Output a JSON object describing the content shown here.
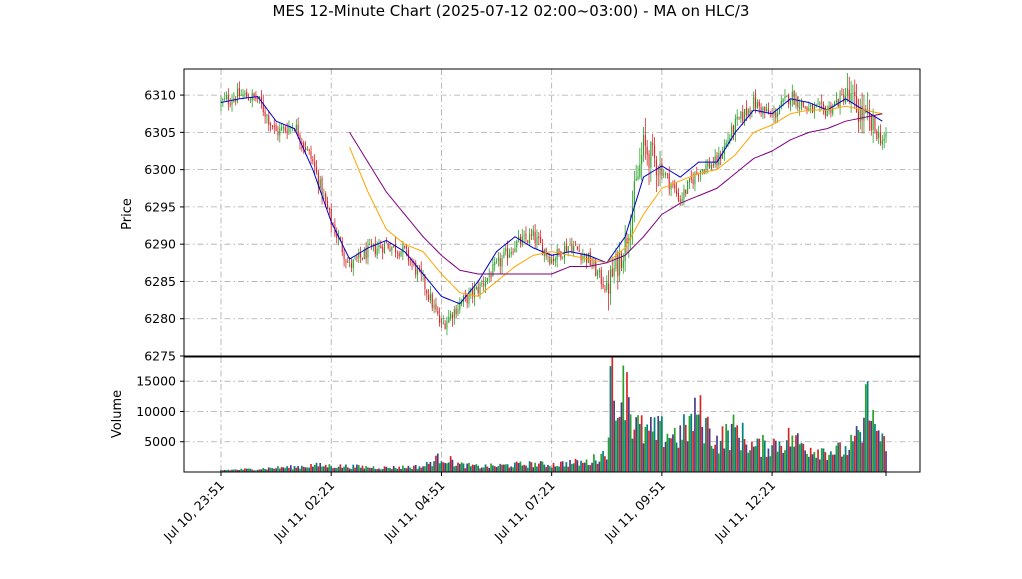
{
  "chart_data": {
    "type": "candlestick",
    "title": "MES 12-Minute Chart (2025-07-12 02:00~03:00) - MA on HLC/3",
    "price_panel": {
      "ylabel": "Price",
      "ylim": [
        6275,
        6313.5
      ],
      "yticks": [
        6275,
        6280,
        6285,
        6290,
        6295,
        6300,
        6305,
        6310
      ],
      "grid": true,
      "up_color": "#2ca02c",
      "down_color": "#d62728",
      "approx_close_path": [
        [
          0,
          6309
        ],
        [
          10,
          6310
        ],
        [
          20,
          6309.5
        ],
        [
          30,
          6305
        ],
        [
          40,
          6306
        ],
        [
          50,
          6301
        ],
        [
          60,
          6293
        ],
        [
          70,
          6287
        ],
        [
          80,
          6289
        ],
        [
          90,
          6290
        ],
        [
          100,
          6289
        ],
        [
          110,
          6285
        ],
        [
          120,
          6279
        ],
        [
          130,
          6282
        ],
        [
          140,
          6284
        ],
        [
          150,
          6287
        ],
        [
          160,
          6290
        ],
        [
          170,
          6291
        ],
        [
          180,
          6288
        ],
        [
          190,
          6290
        ],
        [
          200,
          6288
        ],
        [
          210,
          6284
        ],
        [
          220,
          6290
        ],
        [
          230,
          6303
        ],
        [
          240,
          6300
        ],
        [
          250,
          6296
        ],
        [
          260,
          6300
        ],
        [
          270,
          6301
        ],
        [
          280,
          6306
        ],
        [
          290,
          6309
        ],
        [
          300,
          6307
        ],
        [
          310,
          6310
        ],
        [
          320,
          6308
        ],
        [
          330,
          6308
        ],
        [
          340,
          6310
        ],
        [
          350,
          6307
        ],
        [
          360,
          6304
        ]
      ]
    },
    "moving_averages": [
      {
        "color": "#0000cc",
        "points": [
          [
            0,
            6309
          ],
          [
            10,
            6309.5
          ],
          [
            20,
            6309.8
          ],
          [
            30,
            6306.5
          ],
          [
            40,
            6305.5
          ],
          [
            50,
            6300
          ],
          [
            60,
            6293
          ],
          [
            70,
            6288
          ],
          [
            80,
            6289.5
          ],
          [
            90,
            6290.5
          ],
          [
            100,
            6289
          ],
          [
            110,
            6286
          ],
          [
            120,
            6283
          ],
          [
            130,
            6282
          ],
          [
            140,
            6285
          ],
          [
            150,
            6289
          ],
          [
            160,
            6291
          ],
          [
            170,
            6289.5
          ],
          [
            180,
            6288.5
          ],
          [
            190,
            6289
          ],
          [
            200,
            6288.5
          ],
          [
            210,
            6287.5
          ],
          [
            220,
            6291
          ],
          [
            230,
            6299
          ],
          [
            240,
            6300.5
          ],
          [
            250,
            6299
          ],
          [
            260,
            6301
          ],
          [
            270,
            6301
          ],
          [
            280,
            6305
          ],
          [
            290,
            6308
          ],
          [
            300,
            6307.5
          ],
          [
            310,
            6309.5
          ],
          [
            320,
            6309
          ],
          [
            330,
            6308
          ],
          [
            340,
            6309.5
          ],
          [
            350,
            6308
          ],
          [
            360,
            6306.5
          ]
        ]
      },
      {
        "color": "#ffa500",
        "points": [
          [
            70,
            6303
          ],
          [
            80,
            6297
          ],
          [
            90,
            6292
          ],
          [
            100,
            6290
          ],
          [
            110,
            6289
          ],
          [
            120,
            6286
          ],
          [
            130,
            6283.5
          ],
          [
            140,
            6283
          ],
          [
            150,
            6285
          ],
          [
            160,
            6287
          ],
          [
            170,
            6288.5
          ],
          [
            180,
            6289
          ],
          [
            190,
            6288.5
          ],
          [
            200,
            6288
          ],
          [
            210,
            6287.5
          ],
          [
            220,
            6289.5
          ],
          [
            230,
            6294
          ],
          [
            240,
            6297.5
          ],
          [
            250,
            6298.5
          ],
          [
            260,
            6299.5
          ],
          [
            270,
            6300
          ],
          [
            280,
            6302
          ],
          [
            290,
            6305
          ],
          [
            300,
            6306
          ],
          [
            310,
            6307.5
          ],
          [
            320,
            6308
          ],
          [
            330,
            6308
          ],
          [
            340,
            6308.5
          ],
          [
            350,
            6308
          ],
          [
            360,
            6307.5
          ]
        ]
      },
      {
        "color": "#800080",
        "points": [
          [
            70,
            6305
          ],
          [
            80,
            6301
          ],
          [
            90,
            6297
          ],
          [
            100,
            6294
          ],
          [
            110,
            6291
          ],
          [
            120,
            6288.5
          ],
          [
            130,
            6286.5
          ],
          [
            140,
            6286
          ],
          [
            150,
            6286
          ],
          [
            160,
            6286
          ],
          [
            170,
            6286
          ],
          [
            180,
            6286
          ],
          [
            190,
            6287
          ],
          [
            200,
            6287
          ],
          [
            210,
            6287.5
          ],
          [
            220,
            6288.5
          ],
          [
            230,
            6291
          ],
          [
            240,
            6294
          ],
          [
            250,
            6295.5
          ],
          [
            260,
            6296.5
          ],
          [
            270,
            6297.5
          ],
          [
            280,
            6299.5
          ],
          [
            290,
            6301.5
          ],
          [
            300,
            6302.5
          ],
          [
            310,
            6304
          ],
          [
            320,
            6305
          ],
          [
            330,
            6305.5
          ],
          [
            340,
            6306.5
          ],
          [
            350,
            6307
          ],
          [
            360,
            6307.5
          ]
        ]
      }
    ],
    "volume_panel": {
      "ylabel": "Volume",
      "ylim": [
        0,
        19000
      ],
      "yticks": [
        5000,
        10000,
        15000
      ],
      "grid": true,
      "colors": [
        "#008080",
        "#d62728",
        "#483d8b",
        "#2ca02c"
      ],
      "approx_values": [
        [
          0,
          300
        ],
        [
          10,
          400
        ],
        [
          20,
          500
        ],
        [
          30,
          700
        ],
        [
          40,
          800
        ],
        [
          50,
          1100
        ],
        [
          60,
          1000
        ],
        [
          70,
          900
        ],
        [
          80,
          800
        ],
        [
          90,
          700
        ],
        [
          100,
          800
        ],
        [
          110,
          900
        ],
        [
          120,
          2500
        ],
        [
          130,
          1200
        ],
        [
          140,
          900
        ],
        [
          150,
          1000
        ],
        [
          160,
          1200
        ],
        [
          170,
          1300
        ],
        [
          180,
          1200
        ],
        [
          190,
          1500
        ],
        [
          200,
          1600
        ],
        [
          210,
          3200
        ],
        [
          212,
          17500
        ],
        [
          215,
          8500
        ],
        [
          218,
          11500
        ],
        [
          221,
          16500
        ],
        [
          224,
          8000
        ],
        [
          230,
          6500
        ],
        [
          240,
          6500
        ],
        [
          250,
          6000
        ],
        [
          260,
          9500
        ],
        [
          270,
          5000
        ],
        [
          280,
          7000
        ],
        [
          290,
          4000
        ],
        [
          300,
          4500
        ],
        [
          310,
          5500
        ],
        [
          320,
          4000
        ],
        [
          330,
          3500
        ],
        [
          340,
          3500
        ],
        [
          350,
          6500
        ],
        [
          351,
          14500
        ],
        [
          352,
          15000
        ],
        [
          353,
          8500
        ],
        [
          360,
          6000
        ],
        [
          362,
          2500
        ]
      ]
    },
    "x": {
      "n_bars": 363,
      "tick_labels": [
        "Jul 10, 23:51",
        "Jul 11, 02:21",
        "Jul 11, 04:51",
        "Jul 11, 07:21",
        "Jul 11, 09:51",
        "Jul 11, 12:21"
      ],
      "tick_bar_index": [
        0,
        60,
        120,
        180,
        240,
        300
      ],
      "last_tick_bar_index": 362
    }
  }
}
